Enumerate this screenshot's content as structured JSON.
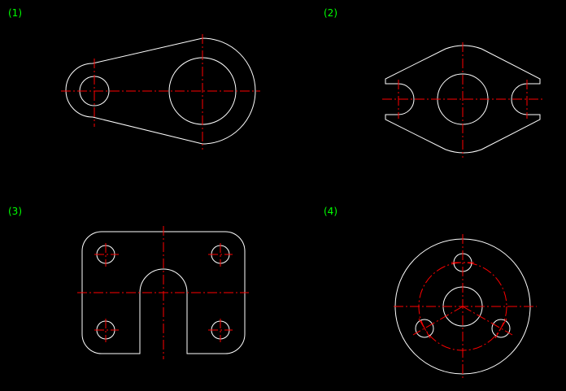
{
  "colors": {
    "background": "#000000",
    "outline": "#ffffff",
    "centerline": "#ff0000",
    "label": "#00ff00"
  },
  "figures": [
    {
      "label": "(1)"
    },
    {
      "label": "(2)"
    },
    {
      "label": "(3)"
    },
    {
      "label": "(4)"
    }
  ]
}
